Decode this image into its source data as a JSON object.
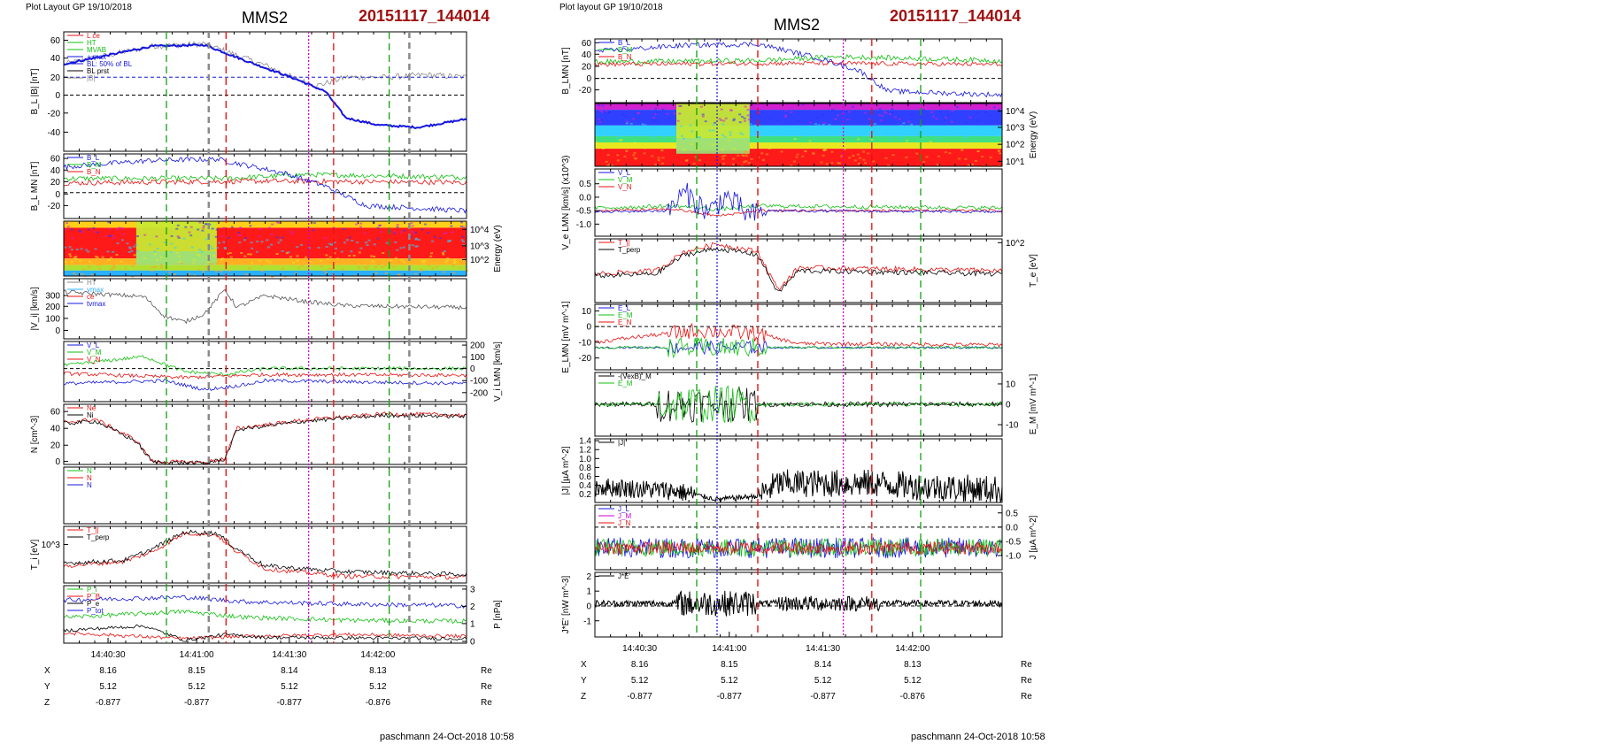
{
  "left": {
    "layout_label": "Plot Layout GP 19/10/2018",
    "spacecraft": "MMS2",
    "event_id": "20151117_144014",
    "signature": "paschmann 24-Oct-2018 10:58",
    "time_ticks": [
      "14:40:30",
      "14:41:00",
      "14:41:30",
      "14:42:00"
    ],
    "ephemeris": [
      {
        "name": "X",
        "values": [
          "8.16",
          "8.15",
          "8.14",
          "8.13"
        ],
        "unit": "Re"
      },
      {
        "name": "Y",
        "values": [
          "5.12",
          "5.12",
          "5.12",
          "5.12"
        ],
        "unit": "Re"
      },
      {
        "name": "Z",
        "values": [
          "-0.877",
          "-0.877",
          "-0.877",
          "-0.876"
        ],
        "unit": "Re"
      }
    ],
    "panels": [
      {
        "ylabel": "B_L |B| [nT]",
        "ticks": [
          "60",
          "40",
          "20",
          "0",
          "-20",
          "-40"
        ],
        "legend": [
          "L ce",
          "HT",
          "MVAB",
          "+ max",
          "BL: 50% of BL",
          "BL prst",
          "|B|"
        ]
      },
      {
        "ylabel": "B_L MN [nT]",
        "ticks": [
          "60",
          "40",
          "20",
          "0",
          "-20"
        ],
        "legend": [
          "B_L",
          "B_M",
          "B_N"
        ]
      },
      {
        "ylabel": "Energy (eV)",
        "ticks": [
          "10^4",
          "10^3",
          "10^2"
        ]
      },
      {
        "ylabel": "|V_i| [km/s]",
        "ticks": [
          "300",
          "200",
          "100",
          "0"
        ],
        "legend": [
          "HT",
          "vmax",
          "ce",
          "tvmax"
        ]
      },
      {
        "ylabel": "V_i LMN [km/s]",
        "ticks": [
          "200",
          "100",
          "0",
          "-100",
          "-200"
        ],
        "legend": [
          "V_L",
          "V_M",
          "V_N"
        ]
      },
      {
        "ylabel": "N [cm^-3]",
        "ticks": [
          "60",
          "40",
          "20",
          "0"
        ],
        "legend": [
          "Ne",
          "Ni"
        ]
      },
      {
        "ylabel": "",
        "ticks": [],
        "legend": [
          "N",
          "N",
          "N"
        ]
      },
      {
        "ylabel": "T_i [eV]",
        "ticks": [
          "10^3"
        ],
        "legend": [
          "T_||",
          "T_perp"
        ]
      },
      {
        "ylabel": "P [nPa]",
        "ticks": [
          "3",
          "2",
          "1",
          "0"
        ],
        "legend": [
          "P_i",
          "P_B",
          "P_e",
          "P_tot"
        ]
      }
    ]
  },
  "right": {
    "layout_label": "Plot layout GP 19/10/2018",
    "spacecraft": "MMS2",
    "event_id": "20151117_144014",
    "signature": "paschmann 24-Oct-2018 10:58",
    "time_ticks": [
      "14:40:30",
      "14:41:00",
      "14:41:30",
      "14:42:00"
    ],
    "ephemeris": [
      {
        "name": "X",
        "values": [
          "8.16",
          "8.15",
          "8.14",
          "8.13"
        ],
        "unit": "Re"
      },
      {
        "name": "Y",
        "values": [
          "5.12",
          "5.12",
          "5.12",
          "5.12"
        ],
        "unit": "Re"
      },
      {
        "name": "Z",
        "values": [
          "-0.877",
          "-0.877",
          "-0.877",
          "-0.876"
        ],
        "unit": "Re"
      }
    ],
    "panels": [
      {
        "ylabel": "B_LMN [nT]",
        "ticks": [
          "60",
          "40",
          "20",
          "0",
          "-20"
        ],
        "legend": [
          "B_L",
          "B_M",
          "B_N"
        ]
      },
      {
        "ylabel": "Energy (eV)",
        "ticks": [
          "10^4",
          "10^3",
          "10^2",
          "10^1"
        ]
      },
      {
        "ylabel": "V_e LMN [km/s] (x10^3)",
        "ticks": [
          "0.5",
          "0.0",
          "-0.5",
          "-1.0"
        ],
        "legend": [
          "V_L",
          "V_M",
          "V_N"
        ]
      },
      {
        "ylabel": "T_e [eV]",
        "ticks": [
          "10^2"
        ],
        "legend": [
          "T_||",
          "T_perp"
        ]
      },
      {
        "ylabel": "E_LMN [mV m^-1]",
        "ticks": [
          "10",
          "0",
          "-10",
          "-20"
        ],
        "legend": [
          "E_L",
          "E_M",
          "E_N"
        ]
      },
      {
        "ylabel": "E_M [mV m^-1]",
        "ticks": [
          "10",
          "0",
          "-10"
        ],
        "legend": [
          "-(VexB)_M",
          "E_M"
        ]
      },
      {
        "ylabel": "|J| [µA m^-2]",
        "ticks": [
          "1.4",
          "1.2",
          "1.0",
          "0.8",
          "0.6",
          "0.4",
          "0.2"
        ],
        "legend": [
          "|J|"
        ]
      },
      {
        "ylabel": "J [µA m^-2]",
        "ticks": [
          "0.5",
          "0.0",
          "-0.5",
          "-1.0"
        ],
        "legend": [
          "J_L",
          "J_M",
          "J_N"
        ]
      },
      {
        "ylabel": "J*E' [nW m^-3]",
        "ticks": [
          "2",
          "1",
          "0",
          "-1"
        ],
        "legend": [
          "J*E'"
        ]
      }
    ]
  },
  "colors": {
    "blue": "#1515e0",
    "green": "#10c010",
    "red": "#e81010",
    "black": "#000000",
    "gray": "#8a8a8a",
    "magenta": "#cc00cc",
    "title_red": "#a01010"
  },
  "chart_data": [
    {
      "type": "line",
      "title": "MMS2 20151117_144014",
      "panel": "left B_L |B|",
      "ylabel": "B_L |B| [nT]",
      "ylim": [
        -45,
        75
      ],
      "x": [
        "14:40:15",
        "14:40:30",
        "14:40:45",
        "14:41:00",
        "14:41:15",
        "14:41:30",
        "14:41:45",
        "14:42:00",
        "14:42:20"
      ],
      "series": [
        {
          "name": "|B|",
          "values": [
            45,
            55,
            66,
            68,
            55,
            40,
            27,
            27,
            30
          ]
        },
        {
          "name": "B_L",
          "values": [
            45,
            55,
            66,
            66,
            45,
            20,
            -30,
            -32,
            -27
          ]
        }
      ]
    },
    {
      "type": "line",
      "panel": "left N",
      "ylabel": "N [cm^-3]",
      "ylim": [
        0,
        70
      ],
      "x": [
        "14:40:15",
        "14:40:30",
        "14:40:45",
        "14:41:00",
        "14:41:15",
        "14:41:30",
        "14:41:45",
        "14:42:00",
        "14:42:20"
      ],
      "series": [
        {
          "name": "Ne",
          "values": [
            45,
            30,
            3,
            2,
            45,
            52,
            57,
            60,
            58
          ]
        },
        {
          "name": "Ni",
          "values": [
            44,
            29,
            2,
            2,
            44,
            51,
            56,
            60,
            57
          ]
        }
      ]
    },
    {
      "type": "line",
      "panel": "right |J|",
      "ylabel": "|J| [µA m^-2]",
      "ylim": [
        0.1,
        1.4
      ],
      "x": [
        "14:40:15",
        "14:40:30",
        "14:40:45",
        "14:41:00",
        "14:41:15",
        "14:41:30",
        "14:41:45",
        "14:42:00",
        "14:42:20"
      ],
      "series": [
        {
          "name": "|J|",
          "values": [
            0.35,
            0.4,
            0.2,
            0.2,
            0.45,
            0.6,
            0.5,
            0.35,
            0.3
          ]
        }
      ]
    }
  ]
}
